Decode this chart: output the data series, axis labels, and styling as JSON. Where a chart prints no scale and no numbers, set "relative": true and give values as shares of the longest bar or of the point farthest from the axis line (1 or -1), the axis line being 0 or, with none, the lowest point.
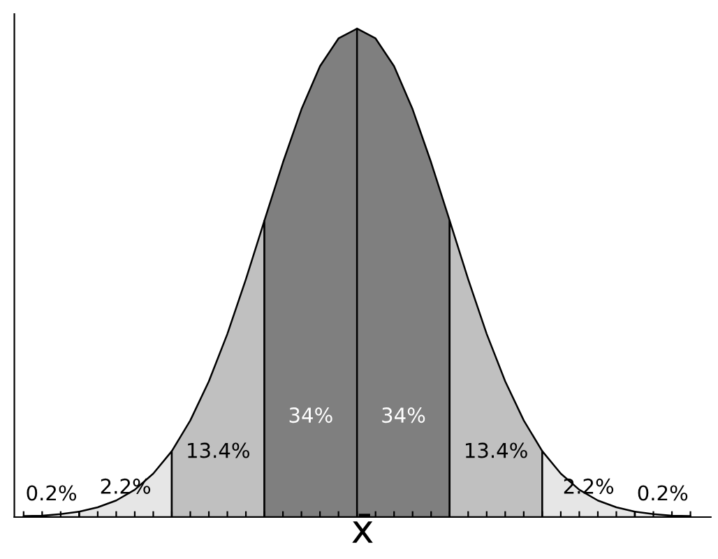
{
  "chart_data": {
    "type": "area",
    "relative": true,
    "xlabel": "x̄",
    "tick_labels": false,
    "grid": false,
    "categories": [
      null,
      null,
      null,
      null,
      null,
      null,
      null,
      null,
      null,
      null,
      null,
      null,
      null,
      null,
      null,
      null,
      null,
      null,
      null,
      null,
      null,
      null,
      null,
      null,
      null,
      null,
      null,
      null,
      null,
      null,
      null,
      null,
      null,
      null,
      null,
      null,
      null
    ],
    "series": [
      {
        "color": "#f2f2f2",
        "values": [
          0.002,
          0.003,
          0.006,
          0.011,
          null,
          null,
          null,
          null,
          null,
          null,
          null,
          null,
          null,
          null,
          null,
          null,
          null,
          null,
          null,
          null,
          null,
          null,
          null,
          null,
          null,
          null,
          null,
          null,
          null,
          null,
          null,
          null,
          null,
          null,
          null,
          null,
          null
        ]
      },
      {
        "color": "#e6e6e6",
        "values": [
          null,
          null,
          null,
          0.011,
          0.02,
          0.034,
          0.056,
          0.089,
          0.135,
          null,
          null,
          null,
          null,
          null,
          null,
          null,
          null,
          null,
          null,
          null,
          null,
          null,
          null,
          null,
          null,
          null,
          null,
          null,
          null,
          null,
          null,
          null,
          null,
          null,
          null,
          null,
          null
        ]
      },
      {
        "color": "#c0c0c0",
        "values": [
          null,
          null,
          null,
          null,
          null,
          null,
          null,
          null,
          0.135,
          0.198,
          0.278,
          0.375,
          0.487,
          0.607,
          null,
          null,
          null,
          null,
          null,
          null,
          null,
          null,
          null,
          null,
          null,
          null,
          null,
          null,
          null,
          null,
          null,
          null,
          null,
          null,
          null,
          null,
          null
        ]
      },
      {
        "color": "#7f7f7f",
        "values": [
          null,
          null,
          null,
          null,
          null,
          null,
          null,
          null,
          null,
          null,
          null,
          null,
          null,
          0.607,
          0.726,
          0.835,
          0.923,
          0.98,
          1.0,
          null,
          null,
          null,
          null,
          null,
          null,
          null,
          null,
          null,
          null,
          null,
          null,
          null,
          null,
          null,
          null,
          null,
          null
        ]
      },
      {
        "color": "#7f7f7f",
        "values": [
          null,
          null,
          null,
          null,
          null,
          null,
          null,
          null,
          null,
          null,
          null,
          null,
          null,
          null,
          null,
          null,
          null,
          null,
          1.0,
          0.98,
          0.923,
          0.835,
          0.726,
          0.607,
          null,
          null,
          null,
          null,
          null,
          null,
          null,
          null,
          null,
          null,
          null,
          null,
          null
        ]
      },
      {
        "color": "#c0c0c0",
        "values": [
          null,
          null,
          null,
          null,
          null,
          null,
          null,
          null,
          null,
          null,
          null,
          null,
          null,
          null,
          null,
          null,
          null,
          null,
          null,
          null,
          null,
          null,
          null,
          0.607,
          0.487,
          0.375,
          0.278,
          0.198,
          0.135,
          null,
          null,
          null,
          null,
          null,
          null,
          null,
          null
        ]
      },
      {
        "color": "#e6e6e6",
        "values": [
          null,
          null,
          null,
          null,
          null,
          null,
          null,
          null,
          null,
          null,
          null,
          null,
          null,
          null,
          null,
          null,
          null,
          null,
          null,
          null,
          null,
          null,
          null,
          null,
          null,
          null,
          null,
          null,
          0.135,
          0.089,
          0.056,
          0.034,
          0.02,
          0.011,
          null,
          null,
          null
        ]
      },
      {
        "color": "#f2f2f2",
        "values": [
          null,
          null,
          null,
          null,
          null,
          null,
          null,
          null,
          null,
          null,
          null,
          null,
          null,
          null,
          null,
          null,
          null,
          null,
          null,
          null,
          null,
          null,
          null,
          null,
          null,
          null,
          null,
          null,
          null,
          null,
          null,
          null,
          null,
          0.011,
          0.006,
          0.003,
          0.002
        ]
      }
    ],
    "annotations": [
      "0.2%",
      "2.2%",
      "13.4%",
      "34%",
      "34%",
      "13.4%",
      "2.2%",
      "0.2%"
    ]
  }
}
